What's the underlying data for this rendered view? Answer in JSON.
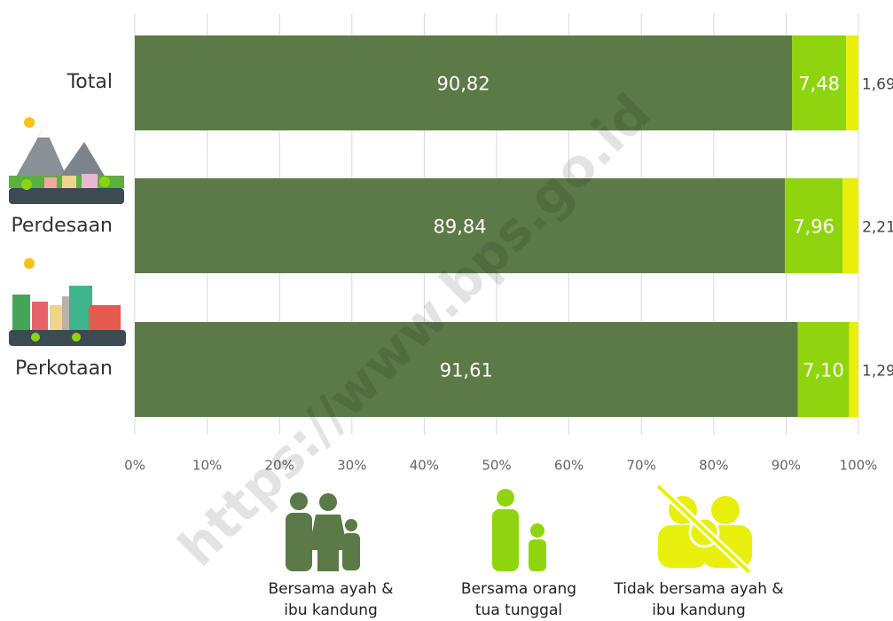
{
  "chart_data": {
    "type": "stacked-bar-horizontal",
    "categories": [
      "Total",
      "Perdesaan",
      "Perkotaan"
    ],
    "series": [
      {
        "name": "Bersama ayah & ibu kandung",
        "color": "#5b7a47",
        "values": [
          90.82,
          89.84,
          91.61
        ],
        "value_labels": [
          "90,82",
          "89,84",
          "91,61"
        ]
      },
      {
        "name": "Bersama orang tua tunggal",
        "color": "#8fd40f",
        "values": [
          7.48,
          7.96,
          7.1
        ],
        "value_labels": [
          "7,48",
          "7,96",
          "7,10"
        ]
      },
      {
        "name": "Tidak bersama ayah & ibu kandung",
        "color": "#e8ef0a",
        "values": [
          1.69,
          2.21,
          1.29
        ],
        "value_labels": [
          "1,69",
          "2,21",
          "1,29"
        ]
      }
    ],
    "xlim": [
      0,
      100
    ],
    "xticks": [
      {
        "value": 0,
        "label": "0%"
      },
      {
        "value": 10,
        "label": "10%"
      },
      {
        "value": 20,
        "label": "20%"
      },
      {
        "value": 30,
        "label": "30%"
      },
      {
        "value": 40,
        "label": "40%"
      },
      {
        "value": 50,
        "label": "50%"
      },
      {
        "value": 60,
        "label": "60%"
      },
      {
        "value": 70,
        "label": "70%"
      },
      {
        "value": 80,
        "label": "80%"
      },
      {
        "value": 90,
        "label": "90%"
      },
      {
        "value": 100,
        "label": "100%"
      }
    ],
    "grid": true,
    "watermark": "https://www.bps.go.id"
  }
}
